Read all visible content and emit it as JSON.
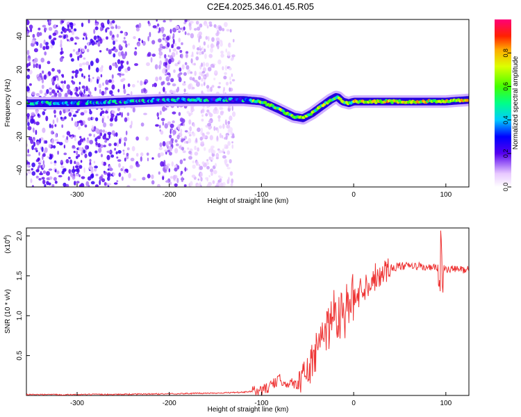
{
  "title": "C2E4.2025.346.01.45.R05",
  "chart_data": [
    {
      "type": "heatmap",
      "title": "C2E4.2025.346.01.45.R05",
      "xlabel": "Height of straight line (km)",
      "ylabel": "Frequency (Hz)",
      "xlim": [
        -355,
        125
      ],
      "ylim": [
        -50,
        50
      ],
      "xticks": [
        -300,
        -200,
        -100,
        0,
        100
      ],
      "yticks": [
        -40,
        -20,
        0,
        20,
        40
      ],
      "colorbar": {
        "label": "Normalized spectral amplitude",
        "range": [
          0,
          1
        ],
        "ticks": [
          0.0,
          0.2,
          0.4,
          0.6,
          0.8
        ]
      },
      "ridge": {
        "x": [
          -355,
          -300,
          -250,
          -200,
          -150,
          -120,
          -100,
          -80,
          -65,
          -55,
          -45,
          -35,
          -25,
          -18,
          -12,
          -5,
          0,
          20,
          50,
          80,
          100,
          125
        ],
        "y": [
          0,
          0,
          1,
          2,
          2,
          2,
          1,
          -4,
          -8,
          -9,
          -6,
          -2,
          2,
          4,
          1,
          0,
          1,
          1,
          1,
          1,
          1,
          2
        ]
      }
    },
    {
      "type": "line",
      "xlabel": "Height of straight line (km)",
      "ylabel": "SNR (10 * v/v)",
      "y_multiplier": "(x10",
      "y_multiplier_exponent": "4",
      "xlim": [
        -355,
        125
      ],
      "ylim": [
        0,
        2.1
      ],
      "xticks": [
        -300,
        -200,
        -100,
        0,
        100
      ],
      "yticks": [
        0.5,
        1.0,
        1.5,
        2.0
      ],
      "series": [
        {
          "name": "SNR",
          "color": "#ee3333",
          "x": [
            -355,
            -300,
            -250,
            -200,
            -150,
            -120,
            -100,
            -90,
            -80,
            -70,
            -60,
            -50,
            -40,
            -30,
            -20,
            -10,
            0,
            10,
            20,
            30,
            40,
            50,
            60,
            70,
            80,
            90,
            95,
            100,
            110,
            125
          ],
          "y": [
            0.01,
            0.01,
            0.015,
            0.02,
            0.03,
            0.04,
            0.06,
            0.12,
            0.2,
            0.15,
            0.15,
            0.3,
            0.55,
            0.85,
            1.05,
            1.05,
            1.2,
            1.35,
            1.45,
            1.55,
            1.6,
            1.62,
            1.62,
            1.62,
            1.6,
            1.6,
            1.6,
            1.58,
            1.58,
            1.58
          ]
        }
      ]
    }
  ]
}
